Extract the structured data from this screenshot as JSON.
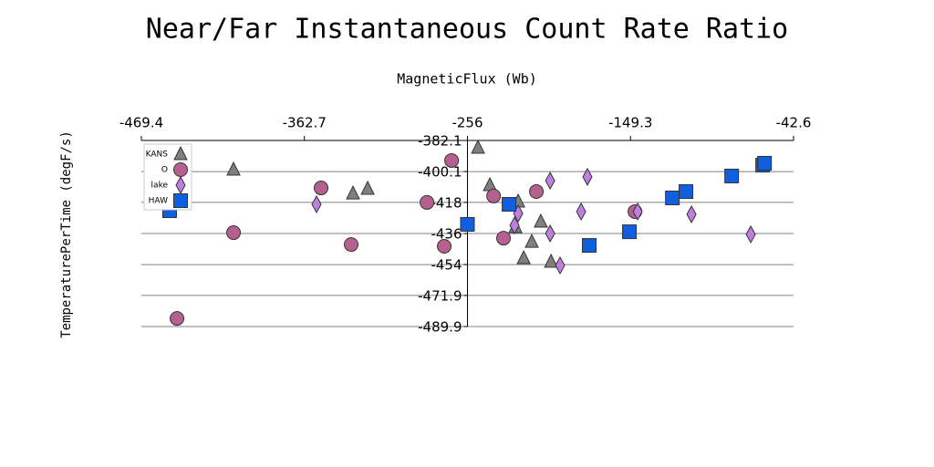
{
  "chart_data": {
    "type": "scatter",
    "title": "Near/Far Instantaneous Count Rate Ratio",
    "x_label": "MagneticFlux (Wb)",
    "y_label": "TemperaturePerTime (degF/s)",
    "xlim": [
      -469.4,
      -42.6
    ],
    "xticks": [
      -469.4,
      -362.7,
      -256.0,
      -149.3,
      -42.6
    ],
    "ylim": [
      -489.9,
      -382.1
    ],
    "yticks": [
      -382.1,
      -400.1,
      -418.0,
      -436.0,
      -454.0,
      -471.9,
      -489.9
    ],
    "grid": true,
    "legend": "upper left",
    "series": [
      {
        "name": "KANS",
        "color": "#7f7f7f",
        "marker": "triangle",
        "x": [
          -249.1,
          -409.1,
          -330.9,
          -321.3,
          -241.3,
          -222.8,
          -224.6,
          -208.0,
          -213.9,
          -219.2,
          -201.3
        ],
        "values": [
          -386.3,
          -399.0,
          -412.8,
          -410.1,
          -408.0,
          -417.5,
          -432.3,
          -429.1,
          -440.8,
          -450.3,
          -452.4
        ]
      },
      {
        "name": "O",
        "color": "#b5608f",
        "marker": "circle",
        "x": [
          -446.1,
          -409.1,
          -351.8,
          -332.1,
          -282.5,
          -271.2,
          -266.4,
          -238.9,
          -232.4,
          -210.9,
          -146.4
        ],
        "values": [
          -485.2,
          -435.5,
          -409.6,
          -442.4,
          -418.0,
          -443.4,
          -393.7,
          -414.3,
          -438.7,
          -411.7,
          -423.3
        ]
      },
      {
        "name": "lake",
        "color": "#bf7fdf",
        "marker": "diamond",
        "x": [
          -354.8,
          -201.9,
          -222.8,
          -225.2,
          -201.9,
          -195.4,
          -177.5,
          -181.6,
          -144.6,
          -109.4,
          -70.6
        ],
        "values": [
          -419.1,
          -405.4,
          -424.4,
          -431.3,
          -436.0,
          -454.5,
          -403.2,
          -423.3,
          -423.3,
          -424.9,
          -436.5
        ]
      },
      {
        "name": "HAW",
        "color": "#0f5fdf",
        "marker": "square",
        "x": [
          -450.9,
          -256.0,
          -228.8,
          -176.3,
          -150.0,
          -121.9,
          -113.0,
          -83.1,
          -62.8,
          -61.6
        ],
        "values": [
          -422.8,
          -430.7,
          -419.1,
          -442.9,
          -435.0,
          -415.4,
          -411.7,
          -402.7,
          -396.4,
          -395.3
        ]
      }
    ]
  }
}
